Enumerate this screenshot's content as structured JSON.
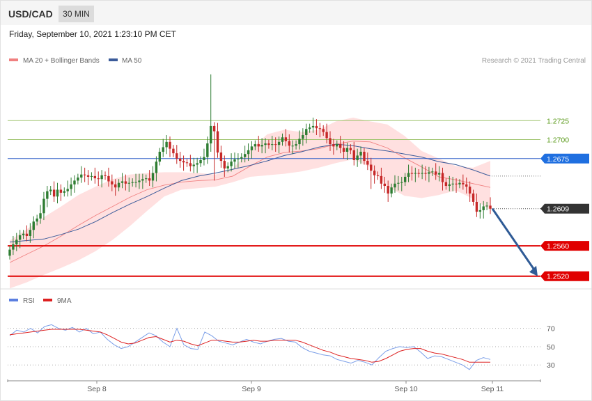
{
  "header": {
    "symbol": "USD/CAD",
    "timeframe": "30 MIN",
    "datetime": "Friday, September 10, 2021 1:23:10 PM CET"
  },
  "legend": {
    "ma20_label": "MA 20 + Bollinger Bands",
    "ma50_label": "MA 50",
    "copyright": "Research © 2021 Trading Central",
    "rsi_label": "RSI",
    "ma9_label": "9MA"
  },
  "colors": {
    "up_candle": "#2e7d32",
    "down_candle": "#c62828",
    "bollinger_fill": "#ffd6d6",
    "ma20": "#f08080",
    "ma50": "#3b5b9a",
    "support": "#e00000",
    "resistance_green": "#9dc36b",
    "pivot_blue": "#2f5fc7",
    "last_price": "#333333",
    "rsi": "#7a9ee8",
    "rsi_ma": "#dd2020",
    "arrow": "#2f5b96"
  },
  "chart_data": {
    "type": "candlestick",
    "interval": "30 MIN",
    "x_tick_labels": [
      "Sep 8",
      "Sep 9",
      "Sep 10",
      "Sep 11"
    ],
    "price_axis": {
      "min": 1.2506,
      "max": 1.2795
    },
    "levels": [
      {
        "label": "1.2725",
        "value": 1.2725,
        "kind": "resistance"
      },
      {
        "label": "1.2700",
        "value": 1.27,
        "kind": "resistance"
      },
      {
        "label": "1.2675",
        "value": 1.2675,
        "kind": "pivot"
      },
      {
        "label": "1.2609",
        "value": 1.2609,
        "kind": "last"
      },
      {
        "label": "1.2560",
        "value": 1.256,
        "kind": "support"
      },
      {
        "label": "1.2520",
        "value": 1.252,
        "kind": "support"
      }
    ],
    "forecast_arrow": {
      "from": 1.2609,
      "to": 1.252
    },
    "candle_closes": [
      1.2555,
      1.2562,
      1.2568,
      1.2574,
      1.2576,
      1.2573,
      1.2581,
      1.2592,
      1.2596,
      1.2603,
      1.2622,
      1.2632,
      1.2634,
      1.2625,
      1.2634,
      1.263,
      1.2632,
      1.2635,
      1.2641,
      1.2646,
      1.265,
      1.2654,
      1.2653,
      1.2651,
      1.2652,
      1.2649,
      1.2648,
      1.2653,
      1.2652,
      1.2645,
      1.2641,
      1.2637,
      1.2643,
      1.2645,
      1.2642,
      1.2643,
      1.2644,
      1.2644,
      1.2646,
      1.2648,
      1.2649,
      1.2646,
      1.2656,
      1.2671,
      1.2684,
      1.269,
      1.2697,
      1.2688,
      1.2682,
      1.2675,
      1.2672,
      1.267,
      1.2669,
      1.2665,
      1.2667,
      1.2669,
      1.2673,
      1.2677,
      1.2695,
      1.2718,
      1.2711,
      1.2683,
      1.2672,
      1.2662,
      1.2665,
      1.2671,
      1.2674,
      1.2675,
      1.2677,
      1.2681,
      1.2686,
      1.2691,
      1.2694,
      1.2691,
      1.2693,
      1.2695,
      1.2693,
      1.2694,
      1.2693,
      1.2697,
      1.2703,
      1.2698,
      1.2692,
      1.2692,
      1.2694,
      1.2701,
      1.2706,
      1.2714,
      1.2716,
      1.2718,
      1.2715,
      1.2714,
      1.271,
      1.2702,
      1.2694,
      1.2691,
      1.2694,
      1.2689,
      1.2684,
      1.2689,
      1.2686,
      1.2673,
      1.2679,
      1.2684,
      1.2672,
      1.2667,
      1.2659,
      1.2653,
      1.2652,
      1.2642,
      1.2639,
      1.2629,
      1.2637,
      1.2642,
      1.2643,
      1.2644,
      1.2651,
      1.2656,
      1.2655,
      1.2656,
      1.2655,
      1.2656,
      1.2655,
      1.2657,
      1.2658,
      1.2654,
      1.2656,
      1.2644,
      1.2639,
      1.2641,
      1.2642,
      1.2641,
      1.2643,
      1.2641,
      1.2638,
      1.2629,
      1.2618,
      1.2605,
      1.2607,
      1.2612,
      1.2613,
      1.2609
    ],
    "bollinger_upper": [
      1.2567,
      1.2582,
      1.2598,
      1.2612,
      1.2627,
      1.2638,
      1.2648,
      1.2654,
      1.2656,
      1.2657,
      1.2657,
      1.2656,
      1.2654,
      1.2662,
      1.2686,
      1.2707,
      1.2713,
      1.271,
      1.2713,
      1.2724,
      1.2729,
      1.2724,
      1.272,
      1.2705,
      1.2685,
      1.2675,
      1.2665,
      1.2663,
      1.2672
    ],
    "bollinger_lower": [
      1.2504,
      1.2512,
      1.2522,
      1.2531,
      1.2541,
      1.2553,
      1.2568,
      1.2586,
      1.2606,
      1.2625,
      1.2634,
      1.2636,
      1.2638,
      1.2644,
      1.2651,
      1.2653,
      1.2655,
      1.2658,
      1.2663,
      1.2669,
      1.2674,
      1.2664,
      1.2638,
      1.2626,
      1.2623,
      1.2627,
      1.2633,
      1.2622,
      1.2607
    ],
    "ma20": [
      1.2538,
      1.2549,
      1.256,
      1.2573,
      1.2587,
      1.26,
      1.2612,
      1.2624,
      1.2634,
      1.264,
      1.2644,
      1.2646,
      1.2647,
      1.2652,
      1.2665,
      1.2677,
      1.2683,
      1.2685,
      1.2688,
      1.2694,
      1.2698,
      1.2697,
      1.2689,
      1.2676,
      1.2664,
      1.2651,
      1.2647,
      1.2642,
      1.2637
    ],
    "ma50": [
      1.2565,
      1.2567,
      1.2569,
      1.2575,
      1.2582,
      1.2592,
      1.2604,
      1.2615,
      1.2625,
      1.2636,
      1.2646,
      1.2652,
      1.2656,
      1.2661,
      1.2666,
      1.2672,
      1.2679,
      1.2684,
      1.269,
      1.2694,
      1.2692,
      1.2688,
      1.2685,
      1.2681,
      1.2677,
      1.2671,
      1.2667,
      1.266,
      1.2652
    ],
    "rsi_axis": {
      "ticks": [
        70,
        50,
        30
      ],
      "min": 18,
      "max": 88
    },
    "rsi": [
      62,
      68,
      66,
      70,
      65,
      72,
      74,
      70,
      68,
      71,
      66,
      70,
      64,
      66,
      58,
      52,
      48,
      50,
      55,
      60,
      65,
      62,
      55,
      50,
      70,
      52,
      48,
      47,
      66,
      62,
      56,
      54,
      52,
      55,
      58,
      55,
      53,
      56,
      58,
      59,
      56,
      55,
      49,
      45,
      43,
      41,
      40,
      36,
      34,
      32,
      35,
      33,
      30,
      38,
      45,
      48,
      50,
      49,
      50,
      44,
      37,
      40,
      39,
      36,
      33,
      30,
      25,
      35,
      38,
      36
    ],
    "rsi_ma": [
      63,
      64,
      65,
      66,
      67,
      68,
      69,
      69,
      69,
      69,
      69,
      68,
      67,
      66,
      63,
      59,
      55,
      53,
      54,
      57,
      60,
      61,
      58,
      55,
      57,
      56,
      53,
      51,
      54,
      57,
      57,
      56,
      55,
      55,
      56,
      57,
      56,
      56,
      57,
      57,
      57,
      57,
      55,
      52,
      49,
      46,
      44,
      41,
      39,
      37,
      36,
      35,
      33,
      34,
      37,
      41,
      45,
      47,
      48,
      48,
      45,
      43,
      42,
      40,
      38,
      36,
      33,
      33,
      33,
      33
    ]
  }
}
